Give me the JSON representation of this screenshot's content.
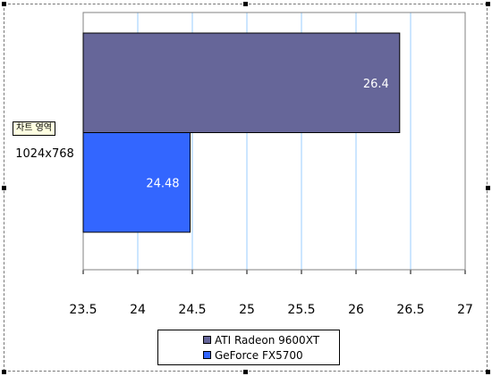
{
  "tooltip": {
    "label": "차트 영역"
  },
  "chart_data": {
    "type": "bar",
    "orientation": "horizontal",
    "categories": [
      "1024x768"
    ],
    "series": [
      {
        "name": "ATI Radeon 9600XT",
        "values": [
          26.4
        ],
        "color": "#666699"
      },
      {
        "name": "GeForce FX5700",
        "values": [
          24.48
        ],
        "color": "#3366ff"
      }
    ],
    "xlim": [
      23.5,
      27
    ],
    "xticks": [
      "23.5",
      "24",
      "24.5",
      "25",
      "25.5",
      "26",
      "26.5",
      "27"
    ],
    "xtick_values": [
      23.5,
      24,
      24.5,
      25,
      25.5,
      26,
      26.5,
      27
    ],
    "grid": true,
    "gridline_color": "#99ccff",
    "data_labels": [
      "26.4",
      "24.48"
    ],
    "legend_position": "bottom"
  }
}
